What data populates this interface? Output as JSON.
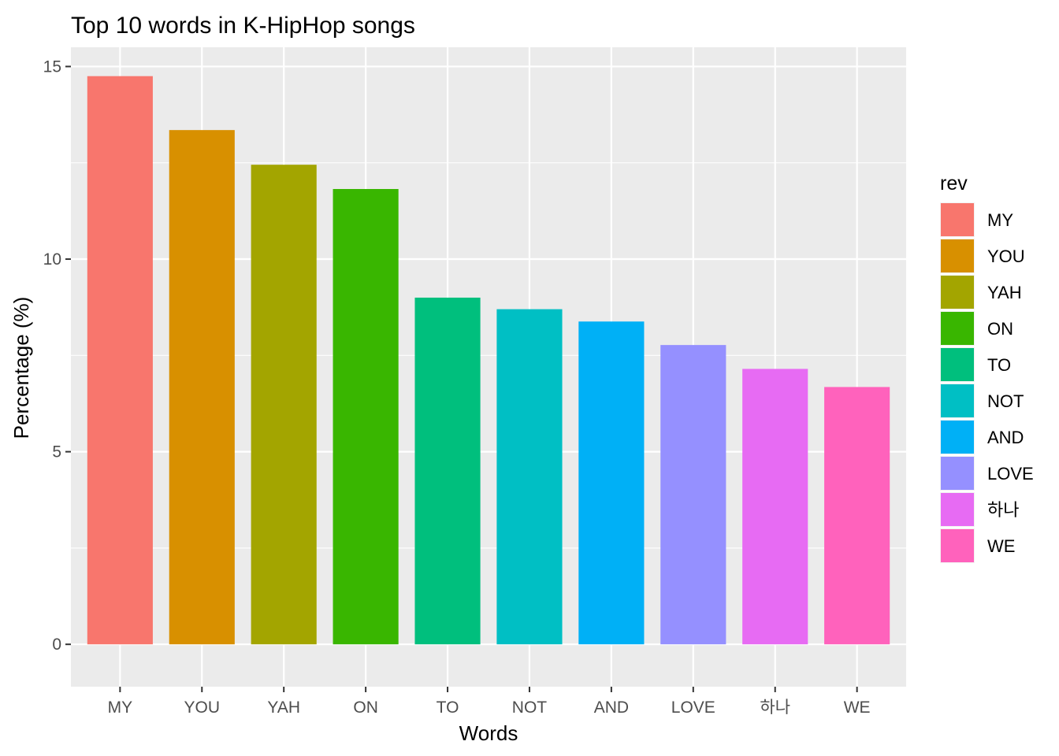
{
  "chart_data": {
    "type": "bar",
    "title": "Top 10 words in K-HipHop songs",
    "xlabel": "Words",
    "ylabel": "Percentage (%)",
    "ylim": [
      -1.1,
      15.5
    ],
    "yticks": [
      0,
      5,
      10,
      15
    ],
    "grid": true,
    "categories": [
      "MY",
      "YOU",
      "YAH",
      "ON",
      "TO",
      "NOT",
      "AND",
      "LOVE",
      "하나",
      "WE"
    ],
    "values": [
      14.75,
      13.35,
      12.45,
      11.82,
      9.0,
      8.7,
      8.38,
      7.77,
      7.15,
      6.68
    ],
    "colors": [
      "#F8766D",
      "#D89000",
      "#A3A500",
      "#39B600",
      "#00BF7D",
      "#00BFC4",
      "#00B0F6",
      "#9590FF",
      "#E76BF3",
      "#FF62BC"
    ],
    "legend": {
      "title": "rev",
      "position": "right",
      "entries": [
        "MY",
        "YOU",
        "YAH",
        "ON",
        "TO",
        "NOT",
        "AND",
        "LOVE",
        "하나",
        "WE"
      ]
    }
  }
}
